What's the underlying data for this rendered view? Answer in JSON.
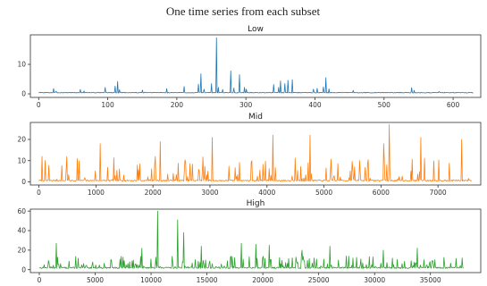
{
  "figure_title": "One time series from each subset",
  "chart_data": [
    {
      "type": "line",
      "title": "Low",
      "color": "#1f77b4",
      "xlim": [
        -12,
        640
      ],
      "ylim": [
        -1.2,
        20
      ],
      "xticks": [
        0,
        100,
        200,
        300,
        400,
        500,
        600
      ],
      "yticks": [
        0,
        10
      ],
      "n": 630,
      "baseline": 0.3,
      "noise": 0.25,
      "peaks": [
        [
          22,
          1.8
        ],
        [
          25,
          0.9
        ],
        [
          60,
          1.5
        ],
        [
          66,
          1.0
        ],
        [
          96,
          2.2
        ],
        [
          111,
          2.6
        ],
        [
          114,
          4.2
        ],
        [
          117,
          1.4
        ],
        [
          150,
          1.3
        ],
        [
          185,
          1.8
        ],
        [
          211,
          2.5
        ],
        [
          231,
          3.3
        ],
        [
          235,
          6.8
        ],
        [
          239,
          1.6
        ],
        [
          250,
          3.5
        ],
        [
          257,
          19.0
        ],
        [
          260,
          2.2
        ],
        [
          266,
          1.5
        ],
        [
          278,
          7.8
        ],
        [
          283,
          2.0
        ],
        [
          291,
          6.5
        ],
        [
          298,
          2.2
        ],
        [
          301,
          1.6
        ],
        [
          340,
          3.2
        ],
        [
          347,
          2.2
        ],
        [
          350,
          4.4
        ],
        [
          356,
          3.5
        ],
        [
          361,
          4.6
        ],
        [
          367,
          4.8
        ],
        [
          398,
          1.6
        ],
        [
          403,
          1.9
        ],
        [
          412,
          2.4
        ],
        [
          416,
          5.5
        ],
        [
          420,
          1.7
        ],
        [
          455,
          1.2
        ],
        [
          540,
          2.1
        ],
        [
          544,
          1.2
        ],
        [
          580,
          0.8
        ]
      ]
    },
    {
      "type": "line",
      "title": "Mid",
      "color": "#ff7f0e",
      "xlim": [
        -150,
        7750
      ],
      "ylim": [
        -1.5,
        28
      ],
      "xticks": [
        0,
        1000,
        2000,
        3000,
        4000,
        5000,
        6000,
        7000
      ],
      "yticks": [
        0,
        10,
        20
      ],
      "n": 7600,
      "baseline": 0.3,
      "noise": 0.6,
      "peaks": [
        [
          1070,
          18.0
        ],
        [
          2130,
          19.0
        ],
        [
          3040,
          21.0
        ],
        [
          4100,
          22.0
        ],
        [
          4750,
          22.0
        ],
        [
          6050,
          18.0
        ],
        [
          6140,
          27.0
        ],
        [
          6700,
          21.0
        ],
        [
          7420,
          20.0
        ]
      ],
      "spike_count": 150,
      "spike_max": 12,
      "seed": 7
    },
    {
      "type": "line",
      "title": "High",
      "color": "#2ca02c",
      "xlim": [
        -800,
        39500
      ],
      "ylim": [
        -3,
        62
      ],
      "xticks": [
        0,
        5000,
        10000,
        15000,
        20000,
        25000,
        30000,
        35000
      ],
      "yticks": [
        0,
        20,
        40,
        60
      ],
      "n": 38000,
      "baseline": 1.2,
      "noise": 1.4,
      "peaks": [
        [
          1500,
          27.0
        ],
        [
          9200,
          22.0
        ],
        [
          10600,
          60.0
        ],
        [
          12400,
          51.0
        ],
        [
          12900,
          38.0
        ],
        [
          14500,
          24.0
        ],
        [
          18100,
          27.0
        ],
        [
          19400,
          26.0
        ],
        [
          20600,
          25.0
        ],
        [
          23500,
          20.0
        ],
        [
          26000,
          24.0
        ],
        [
          30800,
          20.0
        ],
        [
          33800,
          22.0
        ]
      ],
      "spike_count": 280,
      "spike_max": 14,
      "seed": 13
    }
  ]
}
